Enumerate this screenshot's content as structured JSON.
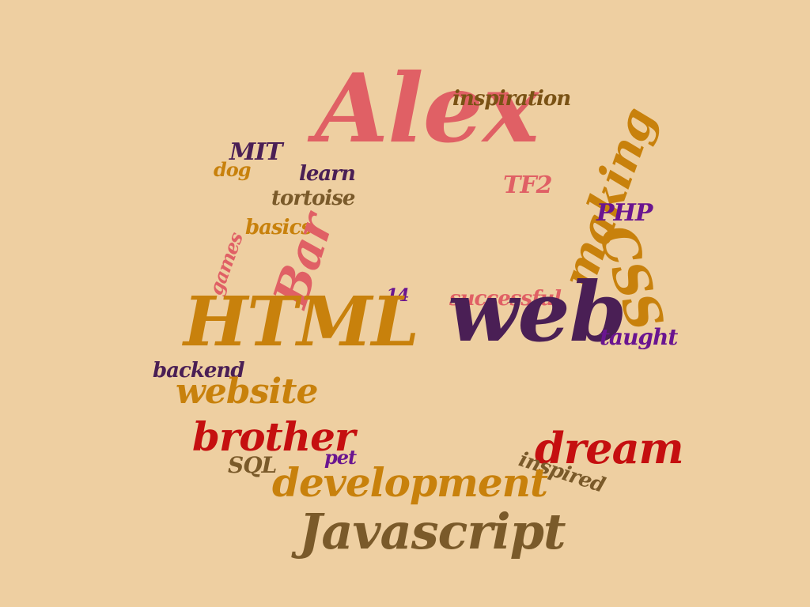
{
  "colors": {
    "background": "#eecfa1",
    "coral": "#e06065",
    "purple": "#4a1f55",
    "orange": "#c8810c",
    "red": "#c50f10",
    "olive": "#7a5a2a",
    "violet": "#6a1590",
    "brown": "#7a5214"
  },
  "words": [
    {
      "id": "alex",
      "text": "Alex",
      "color": "#e06065",
      "rotate": 0
    },
    {
      "id": "inspiration",
      "text": "inspiration",
      "color": "#7a5214",
      "rotate": 0
    },
    {
      "id": "mit",
      "text": "MIT",
      "color": "#4a1f55",
      "rotate": 0
    },
    {
      "id": "dog",
      "text": "dog",
      "color": "#c8810c",
      "rotate": 0
    },
    {
      "id": "learn",
      "text": "learn",
      "color": "#4a1f55",
      "rotate": 0
    },
    {
      "id": "tf2",
      "text": "TF2",
      "color": "#e06065",
      "rotate": 0
    },
    {
      "id": "tortoise",
      "text": "tortoise",
      "color": "#7a5a2a",
      "rotate": 0
    },
    {
      "id": "making",
      "text": "making",
      "color": "#c8810c",
      "rotate": -70
    },
    {
      "id": "php",
      "text": "PHP",
      "color": "#6a1590",
      "rotate": 0
    },
    {
      "id": "basics",
      "text": "basics",
      "color": "#c8810c",
      "rotate": 0
    },
    {
      "id": "games",
      "text": "games",
      "color": "#e06065",
      "rotate": -70
    },
    {
      "id": "bar",
      "text": "Bar",
      "color": "#e06065",
      "rotate": -72
    },
    {
      "id": "css",
      "text": "CSS",
      "color": "#c8810c",
      "rotate": 72
    },
    {
      "id": "n14",
      "text": "14",
      "color": "#6a1590",
      "rotate": 0
    },
    {
      "id": "successful",
      "text": "successful",
      "color": "#e06065",
      "rotate": 0
    },
    {
      "id": "html",
      "text": "HTML",
      "color": "#c8810c",
      "rotate": 0
    },
    {
      "id": "web",
      "text": "web",
      "color": "#4a1f55",
      "rotate": 0
    },
    {
      "id": "taught",
      "text": "taught",
      "color": "#6a1590",
      "rotate": 0
    },
    {
      "id": "backend",
      "text": "backend",
      "color": "#4a1f55",
      "rotate": 0
    },
    {
      "id": "website",
      "text": "website",
      "color": "#c8810c",
      "rotate": 0
    },
    {
      "id": "brother",
      "text": "brother",
      "color": "#c50f10",
      "rotate": 0
    },
    {
      "id": "dream",
      "text": "dream",
      "color": "#c50f10",
      "rotate": 0
    },
    {
      "id": "sql",
      "text": "SQL",
      "color": "#7a5a2a",
      "rotate": 0
    },
    {
      "id": "pet",
      "text": "pet",
      "color": "#6a1590",
      "rotate": 0
    },
    {
      "id": "inspired",
      "text": "inspired",
      "color": "#7a5a2a",
      "rotate": 18
    },
    {
      "id": "development",
      "text": "development",
      "color": "#c8810c",
      "rotate": 0
    },
    {
      "id": "javascript",
      "text": "Javascript",
      "color": "#7a5a2a",
      "rotate": 0
    }
  ]
}
